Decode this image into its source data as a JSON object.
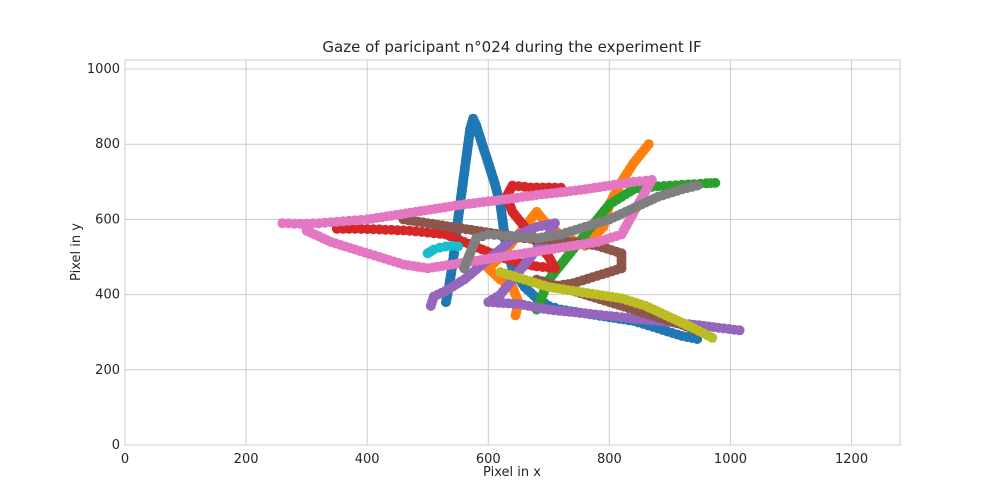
{
  "chart_data": {
    "type": "scatter",
    "title": "Gaze of paricipant n°024 during the experiment IF",
    "xlabel": "Pixel in x",
    "ylabel": "Pixel in y",
    "xlim": [
      0,
      1280
    ],
    "ylim": [
      0,
      1024
    ],
    "xticks": [
      "0",
      "200",
      "400",
      "600",
      "800",
      "1000",
      "1200"
    ],
    "yticks": [
      "0",
      "200",
      "400",
      "600",
      "800",
      "1000"
    ],
    "grid": true,
    "legend": "none",
    "series": [
      {
        "color": "#1f77b4",
        "points": [
          [
            530,
            380
          ],
          [
            535,
            420
          ],
          [
            540,
            470
          ],
          [
            545,
            530
          ],
          [
            550,
            600
          ],
          [
            555,
            660
          ],
          [
            560,
            720
          ],
          [
            565,
            780
          ],
          [
            570,
            840
          ],
          [
            575,
            868
          ],
          [
            580,
            850
          ],
          [
            590,
            800
          ],
          [
            600,
            750
          ],
          [
            610,
            700
          ],
          [
            620,
            640
          ],
          [
            625,
            580
          ],
          [
            630,
            520
          ],
          [
            640,
            470
          ],
          [
            660,
            420
          ],
          [
            680,
            390
          ],
          [
            700,
            370
          ],
          [
            720,
            360
          ],
          [
            760,
            350
          ],
          [
            800,
            340
          ],
          [
            840,
            330
          ],
          [
            880,
            310
          ],
          [
            920,
            290
          ],
          [
            945,
            282
          ]
        ]
      },
      {
        "color": "#ff7f0e",
        "points": [
          [
            645,
            345
          ],
          [
            650,
            380
          ],
          [
            640,
            420
          ],
          [
            620,
            440
          ],
          [
            600,
            470
          ],
          [
            620,
            500
          ],
          [
            640,
            540
          ],
          [
            660,
            580
          ],
          [
            680,
            620
          ],
          [
            700,
            580
          ],
          [
            720,
            560
          ],
          [
            760,
            530
          ],
          [
            790,
            580
          ],
          [
            800,
            640
          ],
          [
            820,
            700
          ],
          [
            840,
            750
          ],
          [
            865,
            800
          ]
        ]
      },
      {
        "color": "#2ca02c",
        "points": [
          [
            680,
            360
          ],
          [
            690,
            400
          ],
          [
            700,
            440
          ],
          [
            720,
            480
          ],
          [
            740,
            520
          ],
          [
            760,
            560
          ],
          [
            780,
            600
          ],
          [
            800,
            640
          ],
          [
            820,
            660
          ],
          [
            840,
            680
          ],
          [
            860,
            685
          ],
          [
            880,
            688
          ],
          [
            900,
            690
          ],
          [
            920,
            692
          ],
          [
            940,
            694
          ],
          [
            960,
            696
          ],
          [
            975,
            697
          ]
        ]
      },
      {
        "color": "#d62728",
        "points": [
          [
            350,
            575
          ],
          [
            380,
            575
          ],
          [
            410,
            574
          ],
          [
            440,
            572
          ],
          [
            470,
            570
          ],
          [
            500,
            565
          ],
          [
            530,
            560
          ],
          [
            560,
            540
          ],
          [
            590,
            520
          ],
          [
            620,
            500
          ],
          [
            650,
            485
          ],
          [
            680,
            475
          ],
          [
            710,
            470
          ],
          [
            700,
            500
          ],
          [
            680,
            540
          ],
          [
            660,
            580
          ],
          [
            640,
            620
          ],
          [
            630,
            660
          ],
          [
            640,
            690
          ],
          [
            670,
            685
          ],
          [
            700,
            685
          ],
          [
            720,
            684
          ]
        ]
      },
      {
        "color": "#9467bd",
        "points": [
          [
            505,
            370
          ],
          [
            510,
            395
          ],
          [
            530,
            410
          ],
          [
            560,
            440
          ],
          [
            590,
            480
          ],
          [
            620,
            520
          ],
          [
            650,
            560
          ],
          [
            680,
            580
          ],
          [
            710,
            590
          ],
          [
            700,
            560
          ],
          [
            680,
            520
          ],
          [
            660,
            480
          ],
          [
            640,
            440
          ],
          [
            620,
            400
          ],
          [
            600,
            380
          ],
          [
            650,
            375
          ],
          [
            700,
            360
          ],
          [
            760,
            350
          ],
          [
            820,
            340
          ],
          [
            880,
            330
          ],
          [
            940,
            320
          ],
          [
            980,
            312
          ],
          [
            1015,
            305
          ]
        ]
      },
      {
        "color": "#8c564b",
        "points": [
          [
            460,
            600
          ],
          [
            500,
            590
          ],
          [
            540,
            580
          ],
          [
            580,
            570
          ],
          [
            620,
            560
          ],
          [
            660,
            550
          ],
          [
            700,
            545
          ],
          [
            740,
            540
          ],
          [
            780,
            530
          ],
          [
            820,
            510
          ],
          [
            820,
            470
          ],
          [
            780,
            450
          ],
          [
            740,
            430
          ],
          [
            700,
            420
          ],
          [
            680,
            440
          ],
          [
            720,
            420
          ],
          [
            760,
            400
          ],
          [
            800,
            380
          ],
          [
            840,
            360
          ],
          [
            880,
            340
          ],
          [
            920,
            320
          ],
          [
            950,
            300
          ]
        ]
      },
      {
        "color": "#e377c2",
        "points": [
          [
            260,
            590
          ],
          [
            290,
            588
          ],
          [
            320,
            590
          ],
          [
            360,
            595
          ],
          [
            400,
            600
          ],
          [
            440,
            610
          ],
          [
            480,
            620
          ],
          [
            520,
            630
          ],
          [
            560,
            640
          ],
          [
            600,
            648
          ],
          [
            640,
            656
          ],
          [
            680,
            665
          ],
          [
            720,
            672
          ],
          [
            760,
            680
          ],
          [
            800,
            690
          ],
          [
            840,
            700
          ],
          [
            870,
            705
          ],
          [
            820,
            560
          ],
          [
            780,
            540
          ],
          [
            740,
            530
          ],
          [
            700,
            520
          ],
          [
            660,
            510
          ],
          [
            620,
            500
          ],
          [
            580,
            490
          ],
          [
            540,
            480
          ],
          [
            500,
            470
          ],
          [
            460,
            480
          ],
          [
            420,
            500
          ],
          [
            380,
            520
          ],
          [
            340,
            540
          ],
          [
            300,
            570
          ]
        ]
      },
      {
        "color": "#7f7f7f",
        "points": [
          [
            560,
            470
          ],
          [
            570,
            510
          ],
          [
            580,
            550
          ],
          [
            600,
            560
          ],
          [
            640,
            555
          ],
          [
            680,
            550
          ],
          [
            720,
            560
          ],
          [
            760,
            580
          ],
          [
            800,
            600
          ],
          [
            840,
            630
          ],
          [
            880,
            660
          ],
          [
            920,
            680
          ],
          [
            945,
            690
          ]
        ]
      },
      {
        "color": "#bcbd22",
        "points": [
          [
            620,
            460
          ],
          [
            660,
            440
          ],
          [
            700,
            420
          ],
          [
            740,
            410
          ],
          [
            780,
            400
          ],
          [
            820,
            390
          ],
          [
            860,
            370
          ],
          [
            900,
            340
          ],
          [
            940,
            310
          ],
          [
            970,
            285
          ]
        ]
      },
      {
        "color": "#17becf",
        "points": [
          [
            500,
            510
          ],
          [
            510,
            520
          ],
          [
            520,
            525
          ],
          [
            530,
            528
          ],
          [
            540,
            530
          ],
          [
            550,
            528
          ]
        ]
      }
    ]
  }
}
